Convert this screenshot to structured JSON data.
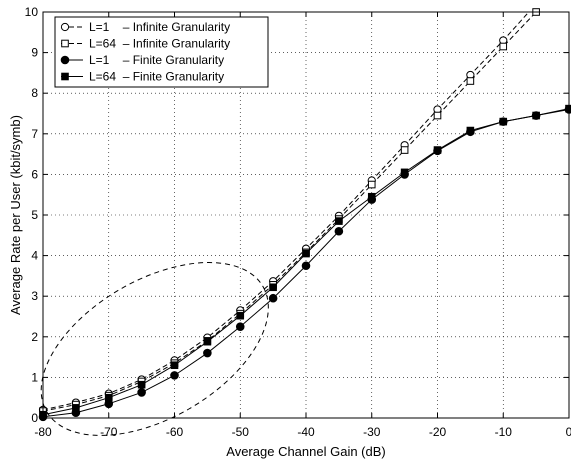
{
  "chart_data": {
    "type": "line",
    "title": "",
    "xlabel": "Average Channel Gain (dB)",
    "ylabel": "Average Rate per User (kbit/symb)",
    "xlim": [
      -80,
      0
    ],
    "ylim": [
      0,
      10
    ],
    "xticks": [
      -80,
      -70,
      -60,
      -50,
      -40,
      -30,
      -20,
      -10,
      0
    ],
    "yticks": [
      0,
      1,
      2,
      3,
      4,
      5,
      6,
      7,
      8,
      9,
      10
    ],
    "grid": true,
    "legend_position": "top-left",
    "x": [
      -80,
      -75,
      -70,
      -65,
      -60,
      -55,
      -50,
      -45,
      -40,
      -35,
      -30,
      -25,
      -20,
      -15,
      -10,
      -5,
      0
    ],
    "series": [
      {
        "name": "L=1    – Infinite Granularity",
        "line": "dashed",
        "marker": "circle-open",
        "values": [
          0.2,
          0.38,
          0.6,
          0.95,
          1.42,
          1.98,
          2.65,
          3.37,
          4.17,
          4.98,
          5.85,
          6.72,
          7.6,
          8.45,
          9.3,
          10.2,
          null
        ]
      },
      {
        "name": "L=64  – Infinite Granularity",
        "line": "dashed",
        "marker": "square-open",
        "values": [
          0.17,
          0.33,
          0.55,
          0.9,
          1.35,
          1.9,
          2.57,
          3.28,
          4.08,
          4.9,
          5.75,
          6.6,
          7.45,
          8.3,
          9.15,
          10.0,
          null
        ]
      },
      {
        "name": "L=1    – Finite Granularity",
        "line": "solid",
        "marker": "circle-filled",
        "values": [
          0.03,
          0.13,
          0.35,
          0.63,
          1.05,
          1.6,
          2.25,
          2.95,
          3.75,
          4.6,
          5.38,
          6.0,
          6.58,
          7.05,
          7.3,
          7.45,
          7.6
        ]
      },
      {
        "name": "L=64  – Finite Granularity",
        "line": "solid",
        "marker": "square-filled",
        "values": [
          0.08,
          0.25,
          0.5,
          0.82,
          1.3,
          1.88,
          2.52,
          3.22,
          4.05,
          4.85,
          5.45,
          6.05,
          6.6,
          7.08,
          7.3,
          7.45,
          7.62
        ]
      }
    ],
    "annotations": [
      {
        "type": "dashed-ellipse",
        "center": [
          -63,
          1.7
        ],
        "radii": [
          19,
          1.7
        ],
        "rotation_deg": -30
      }
    ]
  }
}
